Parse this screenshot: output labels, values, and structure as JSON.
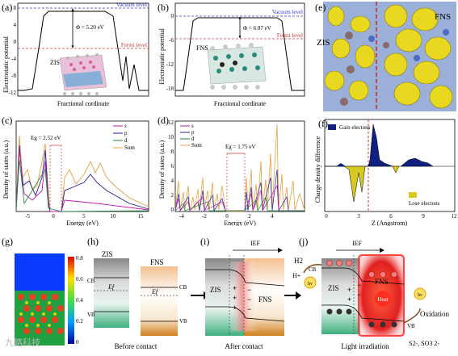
{
  "panels": {
    "a": {
      "label": "(a)",
      "ylabel": "Electrostatic potential",
      "xlabel": "Fractional cordinate",
      "vacuum": "Vacuum level",
      "fermi": "Fermi level",
      "phi": "Φ = 5.20 eV",
      "material": "ZIS",
      "yticks": [
        "8",
        "4",
        "0",
        "-4",
        "-8",
        "-12"
      ]
    },
    "b": {
      "label": "(b)",
      "ylabel": "Electrostatic potential",
      "xlabel": "Fractional cordinate",
      "vacuum": "Vacuum level",
      "fermi": "Fermi level",
      "phi": "Φ = 6.07 eV",
      "material": "FNS",
      "yticks": [
        "0",
        "-6",
        "-12",
        "-18"
      ]
    },
    "e": {
      "label": "(e)",
      "left": "ZIS",
      "right": "FNS"
    },
    "c": {
      "label": "(c)",
      "ylabel": "Density of states (a.u.)",
      "xlabel": "Energy (eV)",
      "eg": "Eg = 2.52 eV",
      "legend": [
        "s",
        "p",
        "d",
        "Sum"
      ],
      "xticks": [
        "-5",
        "0",
        "5",
        "10",
        "15"
      ]
    },
    "d": {
      "label": "(d)",
      "ylabel": "Density of states (a.u.)",
      "xlabel": "Energy (eV)",
      "eg": "Eg = 1.75 eV",
      "legend": [
        "s",
        "p",
        "d",
        "Sum"
      ],
      "xticks": [
        "-4",
        "-2",
        "0",
        "2",
        "4"
      ],
      "yticks": [
        "12",
        "10",
        "8",
        "6",
        "4",
        "2",
        "0"
      ]
    },
    "f": {
      "label": "(f)",
      "ylabel": "Charge density difference",
      "xlabel": "Z (Angstrom)",
      "gain": "Gain electons",
      "lose": "Lose electons",
      "xticks": [
        "0",
        "3",
        "6",
        "9",
        "12"
      ]
    },
    "g": {
      "label": "(g)",
      "scale": [
        "0.8",
        "0.6",
        "0.4",
        "0.2",
        "0"
      ]
    },
    "h": {
      "label": "(h)",
      "left": "ZIS",
      "right": "FNS",
      "cb": "CB",
      "vb": "VB",
      "ef": "Ef",
      "caption": "Before contact"
    },
    "i": {
      "label": "(i)",
      "ief": "IEF",
      "left": "ZIS",
      "right": "FNS",
      "caption": "After contact"
    },
    "j": {
      "label": "(j)",
      "ief": "IEF",
      "h2": "H2",
      "hplus": "H+",
      "cb": "CB",
      "vb": "VB",
      "left": "ZIS",
      "right": "FNS",
      "heat": "Heat",
      "oxidation": "Oxidation",
      "species": "S2-, SO3 2-",
      "caption": "Light irradiation"
    }
  },
  "colors": {
    "vacuum": "#3a3ad0",
    "fermi": "#d03a3a",
    "s": "#c01ab0",
    "p": "#2020a0",
    "d": "#1a8a3a",
    "sum": "#e8a040",
    "gain": "#102080",
    "lose": "#d8c820"
  },
  "watermark": "九略科技"
}
